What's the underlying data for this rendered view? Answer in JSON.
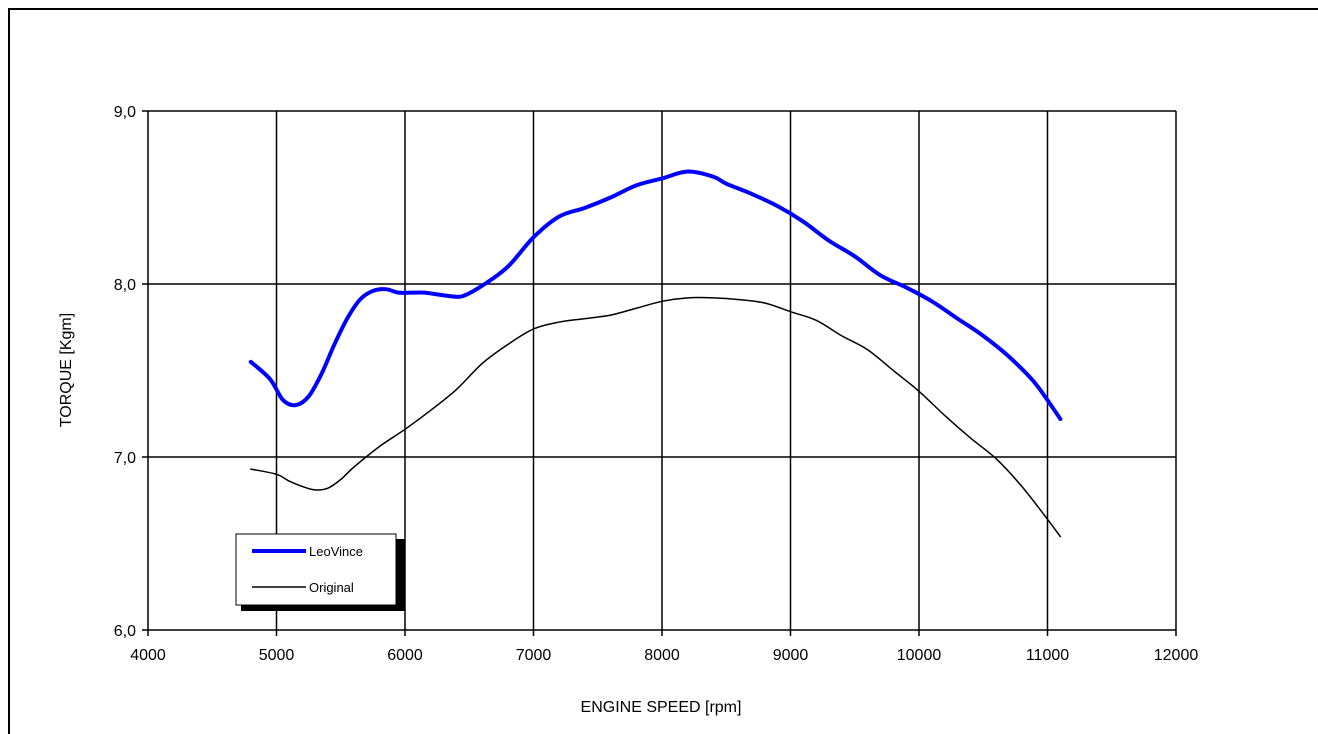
{
  "chart_data": {
    "type": "line",
    "xlabel": "ENGINE SPEED [rpm]",
    "ylabel": "TORQUE [Kgm]",
    "xlim": [
      4000,
      12000
    ],
    "ylim": [
      6.0,
      9.0
    ],
    "xticks": [
      4000,
      5000,
      6000,
      7000,
      8000,
      9000,
      10000,
      11000,
      12000
    ],
    "xtick_labels": [
      "4000",
      "5000",
      "6000",
      "7000",
      "8000",
      "9000",
      "10000",
      "11000",
      "12000"
    ],
    "yticks": [
      6.0,
      7.0,
      8.0,
      9.0
    ],
    "ytick_labels": [
      "6,0",
      "7,0",
      "8,0",
      "9,0"
    ],
    "grid": true,
    "legend": "bottom-left",
    "series": [
      {
        "name": "LeoVince",
        "color": "#0000ff",
        "x": [
          4800,
          4950,
          5050,
          5150,
          5250,
          5350,
          5450,
          5550,
          5650,
          5750,
          5850,
          5950,
          6050,
          6150,
          6250,
          6350,
          6450,
          6600,
          6800,
          7000,
          7200,
          7400,
          7600,
          7800,
          8000,
          8200,
          8400,
          8500,
          8700,
          8900,
          9100,
          9300,
          9500,
          9700,
          9900,
          10100,
          10300,
          10500,
          10700,
          10900,
          11100
        ],
        "values": [
          7.55,
          7.45,
          7.33,
          7.3,
          7.35,
          7.48,
          7.65,
          7.8,
          7.91,
          7.96,
          7.97,
          7.95,
          7.95,
          7.95,
          7.94,
          7.93,
          7.93,
          7.99,
          8.1,
          8.27,
          8.39,
          8.44,
          8.5,
          8.57,
          8.61,
          8.65,
          8.62,
          8.58,
          8.52,
          8.45,
          8.36,
          8.25,
          8.16,
          8.05,
          7.98,
          7.9,
          7.8,
          7.7,
          7.58,
          7.43,
          7.22
        ]
      },
      {
        "name": "Original",
        "color": "#000000",
        "x": [
          4800,
          5000,
          5100,
          5200,
          5300,
          5400,
          5500,
          5600,
          5800,
          6000,
          6200,
          6400,
          6600,
          6800,
          7000,
          7200,
          7400,
          7600,
          7800,
          8000,
          8200,
          8400,
          8600,
          8800,
          9000,
          9200,
          9400,
          9600,
          9800,
          10000,
          10200,
          10400,
          10600,
          10800,
          11000,
          11100
        ],
        "values": [
          6.93,
          6.9,
          6.86,
          6.83,
          6.81,
          6.82,
          6.87,
          6.94,
          7.06,
          7.16,
          7.27,
          7.39,
          7.54,
          7.65,
          7.74,
          7.78,
          7.8,
          7.82,
          7.86,
          7.9,
          7.92,
          7.92,
          7.91,
          7.89,
          7.84,
          7.79,
          7.7,
          7.62,
          7.5,
          7.38,
          7.24,
          7.11,
          6.99,
          6.83,
          6.64,
          6.54
        ]
      }
    ]
  }
}
